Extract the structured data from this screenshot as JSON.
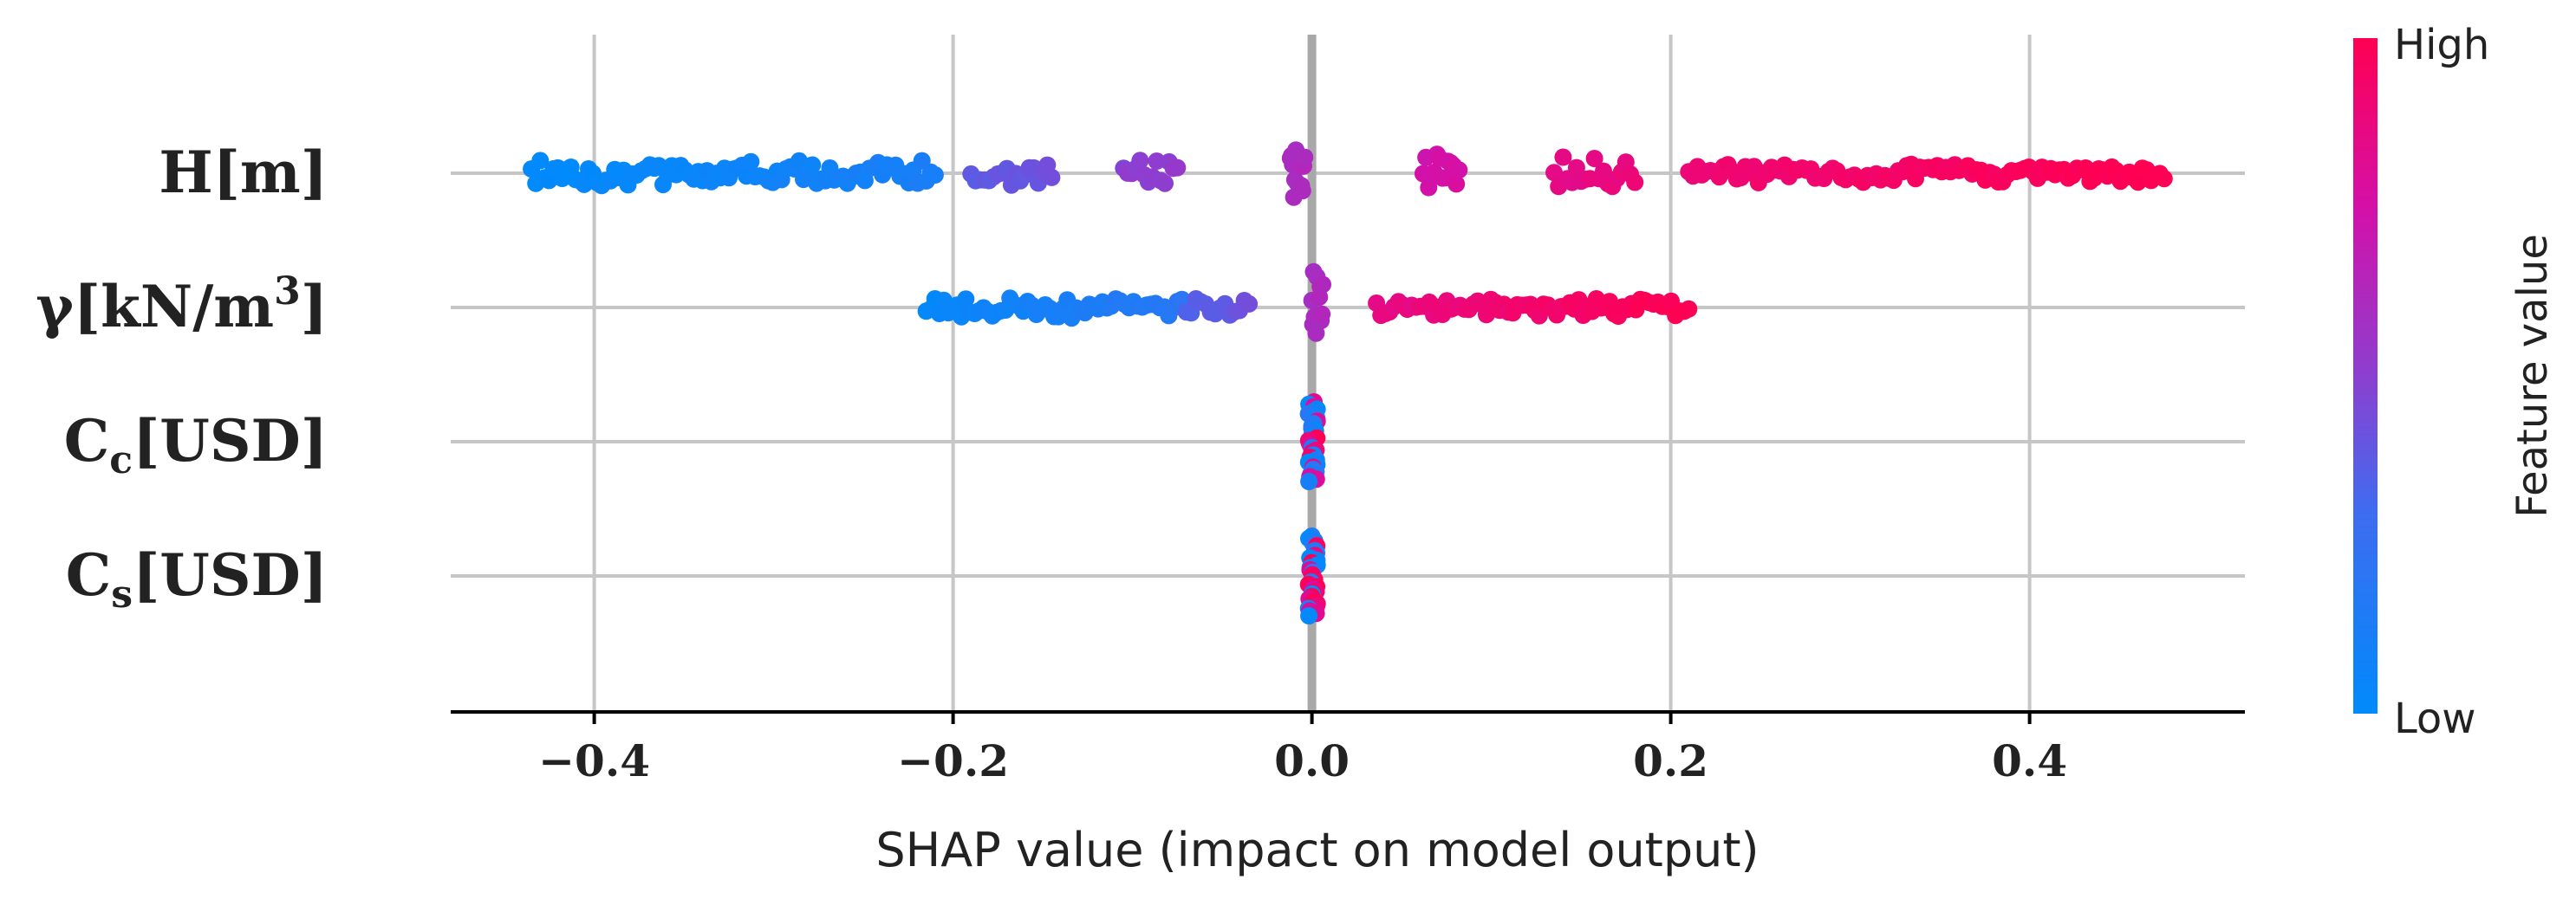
{
  "chart_data": {
    "type": "scatter",
    "subtype": "shap-beeswarm",
    "xlabel": "SHAP value (impact on model output)",
    "xlim": [
      -0.48,
      0.52
    ],
    "xticks": [
      -0.4,
      -0.2,
      0.0,
      0.2,
      0.4
    ],
    "xtick_labels": [
      "−0.4",
      "−0.2",
      "0.0",
      "0.2",
      "0.4"
    ],
    "colorbar": {
      "label": "Feature value",
      "high": "High",
      "low": "Low",
      "low_color": "#008afb",
      "high_color": "#ff0052"
    },
    "features": [
      {
        "id": "H",
        "label_main": "H[m]",
        "label_sub": "",
        "label_tail": "",
        "segments": [
          {
            "x0": -0.435,
            "x1": -0.21,
            "fv0": 0.0,
            "fv1": 0.12,
            "spread": 0.6
          },
          {
            "x0": -0.19,
            "x1": -0.145,
            "fv0": 0.38,
            "fv1": 0.42,
            "spread": 0.65
          },
          {
            "x0": -0.105,
            "x1": -0.075,
            "fv0": 0.5,
            "fv1": 0.52,
            "spread": 0.95
          },
          {
            "x0": -0.012,
            "x1": -0.004,
            "fv0": 0.6,
            "fv1": 0.62,
            "spread": 1.0
          },
          {
            "x0": 0.062,
            "x1": 0.082,
            "fv0": 0.74,
            "fv1": 0.76,
            "spread": 0.95
          },
          {
            "x0": 0.135,
            "x1": 0.18,
            "fv0": 0.84,
            "fv1": 0.88,
            "spread": 0.8
          },
          {
            "x0": 0.21,
            "x1": 0.475,
            "fv0": 0.9,
            "fv1": 1.0,
            "spread": 0.45
          }
        ]
      },
      {
        "id": "gamma",
        "label_main": "γ[kN/m",
        "label_sub": "3",
        "label_tail": "]",
        "segments": [
          {
            "x0": -0.215,
            "x1": -0.07,
            "fv0": 0.02,
            "fv1": 0.2,
            "spread": 0.5
          },
          {
            "x0": -0.07,
            "x1": -0.035,
            "fv0": 0.35,
            "fv1": 0.42,
            "spread": 0.55
          },
          {
            "x0": 0.0,
            "x1": 0.006,
            "fv0": 0.6,
            "fv1": 0.62,
            "spread": 1.0
          },
          {
            "x0": 0.036,
            "x1": 0.21,
            "fv0": 0.85,
            "fv1": 1.0,
            "spread": 0.5
          }
        ]
      },
      {
        "id": "Cc",
        "label_main": "C",
        "label_sub": "c",
        "label_tail": "[USD]",
        "segments": [
          {
            "x0": -0.002,
            "x1": 0.003,
            "fv0": 0.0,
            "fv1": 1.0,
            "spread": 1.0,
            "mixed": true
          }
        ]
      },
      {
        "id": "Cs",
        "label_main": "C",
        "label_sub": "s",
        "label_tail": "[USD]",
        "segments": [
          {
            "x0": -0.002,
            "x1": 0.003,
            "fv0": 0.0,
            "fv1": 1.0,
            "spread": 1.0,
            "mixed": true
          }
        ]
      }
    ]
  }
}
